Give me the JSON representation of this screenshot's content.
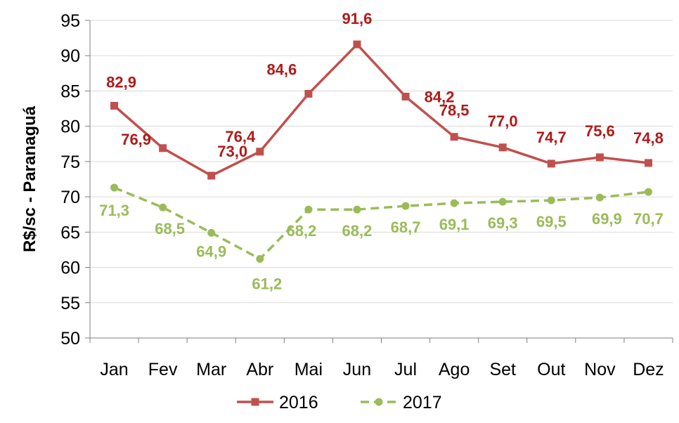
{
  "chart_data": {
    "type": "line",
    "ylabel": "R$/sc - Paranaguá",
    "xlabel": "",
    "ylim": [
      50,
      95
    ],
    "yticks": [
      50,
      55,
      60,
      65,
      70,
      75,
      80,
      85,
      90,
      95
    ],
    "grid": true,
    "legend_position": "bottom",
    "categories": [
      "Jan",
      "Fev",
      "Mar",
      "Abr",
      "Mai",
      "Jun",
      "Jul",
      "Ago",
      "Set",
      "Out",
      "Nov",
      "Dez"
    ],
    "series": [
      {
        "name": "2016",
        "color": "#c0504d",
        "label_color": "#b01a1a",
        "line_style": "solid",
        "marker": "square",
        "values": [
          82.9,
          76.9,
          73.0,
          76.4,
          84.6,
          91.6,
          84.2,
          78.5,
          77.0,
          74.7,
          75.6,
          74.8
        ],
        "labels": [
          "82,9",
          "76,9",
          "73,0",
          "76,4",
          "84,6",
          "91,6",
          "84,2",
          "78,5",
          "77,0",
          "74,7",
          "75,6",
          "74,8"
        ]
      },
      {
        "name": "2017",
        "color": "#9bbb59",
        "label_color": "#9bbb59",
        "line_style": "dashed",
        "marker": "circle",
        "values": [
          71.3,
          68.5,
          64.9,
          61.2,
          68.2,
          68.2,
          68.7,
          69.1,
          69.3,
          69.5,
          69.9,
          70.7
        ],
        "labels": [
          "71,3",
          "68,5",
          "64,9",
          "61,2",
          "68,2",
          "68,2",
          "68,7",
          "69,1",
          "69,3",
          "69,5",
          "69,9",
          "70,7"
        ]
      }
    ]
  }
}
